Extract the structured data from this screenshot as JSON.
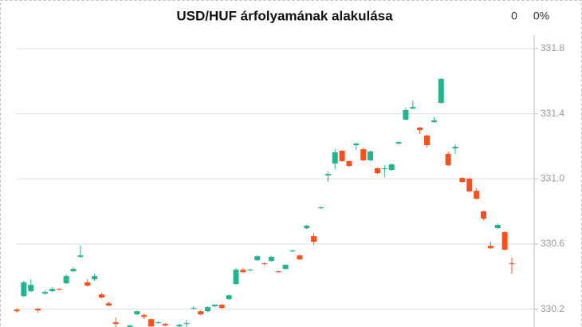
{
  "chart_data": {
    "type": "candlestick",
    "title": "USD/HUF árfolyamának alakulása",
    "change_labels": [
      "0",
      "0%"
    ],
    "up_color": "#22b48c",
    "down_color": "#f4511e",
    "ylim": [
      330.1,
      331.8
    ],
    "yticks": [
      330.2,
      330.6,
      {
        "value": 331,
        "label": "331.0"
      },
      331.4,
      331.8
    ],
    "grid": true,
    "open": [
      330.197,
      330.28,
      330.31,
      330.202,
      330.295,
      330.31,
      330.324,
      330.359,
      330.432,
      330.521,
      330.364,
      330.383,
      330.29,
      330.236,
      330.119,
      330.065,
      330.089,
      330.168,
      330.163,
      330.138,
      330.114,
      330.109,
      330.079,
      330.094,
      330.109,
      330.202,
      330.187,
      330.187,
      330.217,
      330.227,
      330.261,
      330.354,
      330.442,
      330.437,
      330.501,
      330.481,
      330.496,
      330.432,
      330.447,
      330.555,
      330.53,
      330.697,
      330.648,
      330.82,
      331.021,
      331.094,
      331.173,
      331.109,
      331.207,
      331.182,
      331.114,
      331.065,
      331.06,
      331.055,
      331.217,
      331.364,
      331.432,
      331.315,
      331.266,
      331.349,
      331.467,
      331.153,
      331.187,
      331.006,
      331.001,
      330.927,
      330.8,
      330.589,
      330.697,
      330.673,
      330.481
    ],
    "high": [
      330.207,
      330.374,
      330.383,
      330.207,
      330.315,
      330.334,
      330.329,
      330.413,
      330.457,
      330.589,
      330.383,
      330.418,
      330.3,
      330.246,
      330.148,
      330.089,
      330.104,
      330.192,
      330.173,
      330.143,
      330.124,
      330.114,
      330.089,
      330.109,
      330.133,
      330.217,
      330.192,
      330.217,
      330.231,
      330.231,
      330.29,
      330.452,
      330.452,
      330.447,
      330.53,
      330.486,
      330.525,
      330.437,
      330.476,
      330.565,
      330.535,
      330.717,
      330.668,
      330.829,
      331.045,
      331.182,
      331.177,
      331.114,
      331.222,
      331.192,
      331.173,
      331.07,
      331.084,
      331.094,
      331.231,
      331.437,
      331.481,
      331.32,
      331.271,
      331.378,
      331.619,
      331.168,
      331.212,
      331.011,
      331.006,
      330.942,
      330.805,
      330.614,
      330.726,
      330.678,
      330.516
    ],
    "low": [
      330.177,
      330.275,
      330.305,
      330.177,
      330.29,
      330.305,
      330.315,
      330.354,
      330.427,
      330.516,
      330.339,
      330.374,
      330.266,
      330.217,
      330.089,
      330.055,
      330.084,
      330.163,
      330.138,
      330.089,
      330.109,
      330.094,
      330.05,
      330.089,
      330.089,
      330.197,
      330.163,
      330.182,
      330.212,
      330.202,
      330.256,
      330.349,
      330.422,
      330.432,
      330.496,
      330.471,
      330.491,
      330.422,
      330.442,
      330.55,
      330.501,
      330.692,
      330.594,
      330.815,
      330.981,
      331.06,
      331.104,
      331.075,
      331.177,
      331.109,
      331.109,
      331.03,
      331.011,
      331.05,
      331.212,
      331.359,
      331.427,
      331.275,
      331.192,
      331.344,
      331.462,
      331.079,
      331.153,
      330.976,
      330.918,
      330.873,
      330.746,
      330.57,
      330.692,
      330.56,
      330.418
    ],
    "close": [
      330.187,
      330.364,
      330.349,
      330.192,
      330.305,
      330.324,
      330.32,
      330.403,
      330.447,
      330.53,
      330.344,
      330.403,
      330.271,
      330.222,
      330.109,
      330.079,
      330.099,
      330.187,
      330.153,
      330.094,
      330.119,
      330.099,
      330.06,
      330.104,
      330.114,
      330.207,
      330.168,
      330.212,
      330.227,
      330.207,
      330.285,
      330.442,
      330.427,
      330.442,
      330.525,
      330.476,
      330.521,
      330.427,
      330.472,
      330.56,
      330.506,
      330.712,
      330.614,
      330.825,
      331.03,
      331.163,
      331.109,
      331.079,
      331.217,
      331.114,
      331.168,
      331.035,
      331.065,
      331.089,
      331.226,
      331.423,
      331.442,
      331.3,
      331.207,
      331.359,
      331.614,
      331.084,
      331.197,
      330.981,
      330.923,
      330.878,
      330.756,
      330.574,
      330.717,
      330.565,
      330.476
    ]
  }
}
